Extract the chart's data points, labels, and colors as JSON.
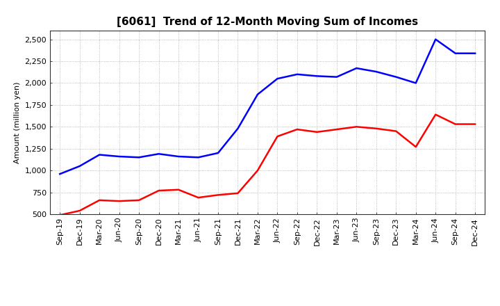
{
  "title": "[6061]  Trend of 12-Month Moving Sum of Incomes",
  "ylabel": "Amount (million yen)",
  "x_labels": [
    "Sep-19",
    "Dec-19",
    "Mar-20",
    "Jun-20",
    "Sep-20",
    "Dec-20",
    "Mar-21",
    "Jun-21",
    "Sep-21",
    "Dec-21",
    "Mar-22",
    "Jun-22",
    "Sep-22",
    "Dec-22",
    "Mar-23",
    "Jun-23",
    "Sep-23",
    "Dec-23",
    "Mar-24",
    "Jun-24",
    "Sep-24",
    "Dec-24"
  ],
  "ordinary_income": [
    960,
    1050,
    1180,
    1160,
    1150,
    1190,
    1160,
    1150,
    1200,
    1480,
    1870,
    2050,
    2100,
    2080,
    2070,
    2170,
    2130,
    2070,
    2000,
    2500,
    2340,
    2340
  ],
  "net_income": [
    490,
    540,
    660,
    650,
    660,
    770,
    780,
    690,
    720,
    740,
    1000,
    1390,
    1470,
    1440,
    1470,
    1500,
    1480,
    1450,
    1270,
    1640,
    1530,
    1530
  ],
  "ordinary_color": "#0000FF",
  "net_color": "#FF0000",
  "ylim_min": 500,
  "ylim_max": 2600,
  "yticks": [
    500,
    750,
    1000,
    1250,
    1500,
    1750,
    2000,
    2250,
    2500
  ],
  "bg_color": "#FFFFFF",
  "grid_color": "#AAAAAA",
  "line_width": 1.8,
  "title_fontsize": 11,
  "axis_fontsize": 8,
  "ylabel_fontsize": 8,
  "legend_fontsize": 9
}
